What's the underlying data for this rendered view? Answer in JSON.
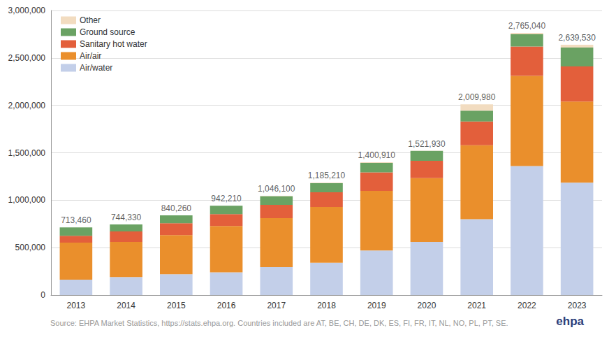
{
  "chart_data": {
    "type": "bar",
    "stacked": true,
    "grid": true,
    "legend": "upper left",
    "categories": [
      "2013",
      "2014",
      "2015",
      "2016",
      "2017",
      "2018",
      "2019",
      "2020",
      "2021",
      "2022",
      "2023"
    ],
    "series": [
      {
        "name": "Air/water",
        "color": "#c3cfe9",
        "values": [
          162000,
          190000,
          220000,
          240000,
          295000,
          340000,
          470000,
          560000,
          800000,
          1360000,
          1185000
        ]
      },
      {
        "name": "Air/air",
        "color": "#ea8f2c",
        "values": [
          390000,
          370000,
          412000,
          488000,
          515000,
          588000,
          628000,
          673000,
          780000,
          950000,
          855000
        ]
      },
      {
        "name": "Sanitary hot water",
        "color": "#e35f3b",
        "values": [
          72000,
          110000,
          125000,
          125000,
          140000,
          155000,
          195000,
          183000,
          250000,
          310000,
          370000
        ]
      },
      {
        "name": "Ground source",
        "color": "#6aa263",
        "values": [
          89460,
          74330,
          83260,
          89210,
          93100,
          97210,
          100000,
          104930,
          115000,
          130040,
          200000
        ]
      },
      {
        "name": "Other",
        "color": "#f2dcc0",
        "values": [
          0,
          0,
          0,
          0,
          3000,
          5000,
          7910,
          1000,
          64980,
          15000,
          29530
        ]
      }
    ],
    "totals": [
      713460,
      744330,
      840260,
      942210,
      1046100,
      1185210,
      1400910,
      1521930,
      2009980,
      2765040,
      2639530
    ],
    "total_labels": [
      "713,460",
      "744,330",
      "840,260",
      "942,210",
      "1,046,100",
      "1,185,210",
      "1,400,910",
      "1,521,930",
      "2,009,980",
      "2,765,040",
      "2,639,530"
    ],
    "ylim": [
      0,
      3000000
    ],
    "yticks": [
      0,
      {
        "value": 500000,
        "label": "500,000"
      },
      {
        "value": 1000000,
        "label": "1,000,000"
      },
      {
        "value": 1500000,
        "label": "1,500,000"
      },
      {
        "value": 2000000,
        "label": "2,000,000"
      },
      {
        "value": 2500000,
        "label": "2,500,000"
      },
      {
        "value": 3000000,
        "label": "3,000,000"
      }
    ],
    "source": "Source: EHPA Market Statistics, https://stats.ehpa.org. Countries included are AT, BE, CH, DE, DK, ES, FI, FR, IT, NL, NO, PL, PT, SE.",
    "logo": "ehpa"
  }
}
